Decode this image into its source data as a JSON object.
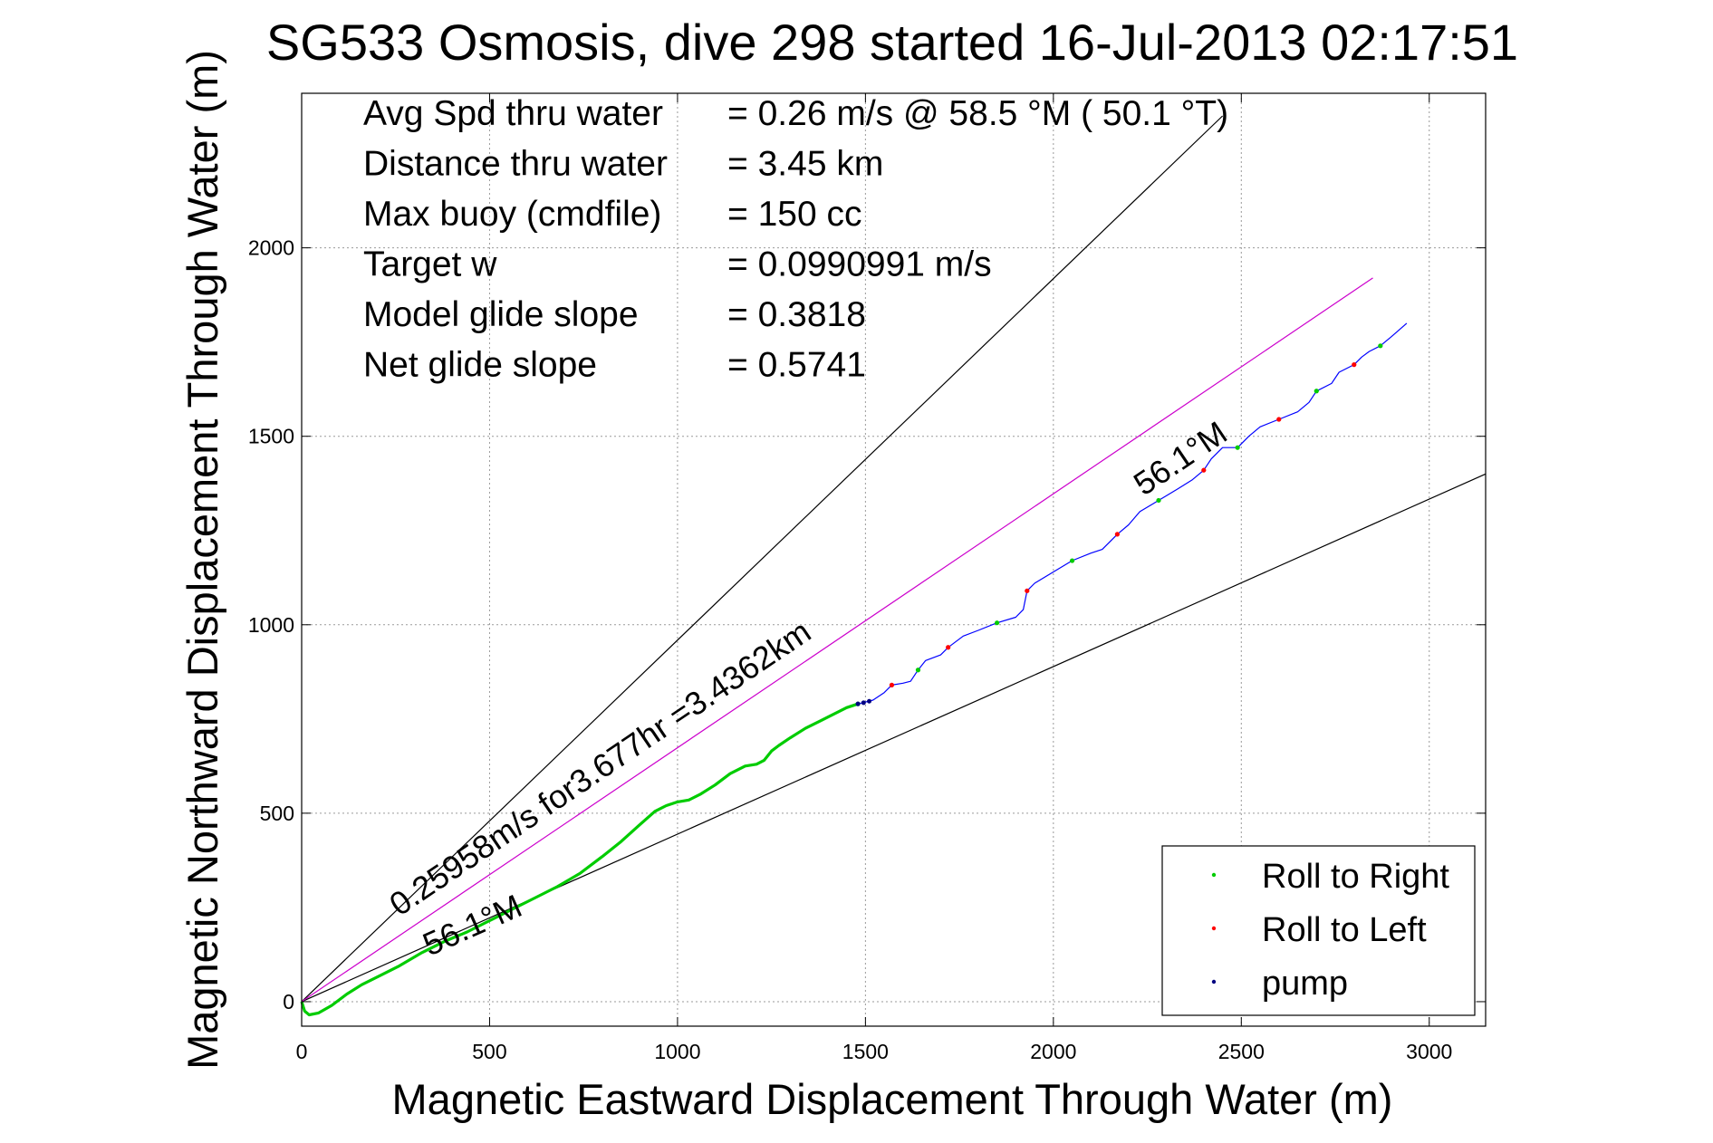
{
  "chart_data": {
    "type": "line",
    "title": "SG533 Osmosis, dive 298 started 16-Jul-2013 02:17:51",
    "xlabel": "Magnetic Eastward Displacement Through Water (m)",
    "ylabel": "Magnetic Northward Displacement Through Water (m)",
    "xlim": [
      0,
      3150
    ],
    "ylim": [
      -65,
      2410
    ],
    "xticks": [
      0,
      500,
      1000,
      1500,
      2000,
      2500,
      3000
    ],
    "yticks": [
      0,
      500,
      1000,
      1500,
      2000
    ],
    "grid": true,
    "legend_position": "bottom-right",
    "legend": [
      {
        "label": "Roll to Right",
        "color": "#00cc00"
      },
      {
        "label": "Roll to Left",
        "color": "#ff0000"
      },
      {
        "label": "pump",
        "color": "#000080"
      }
    ],
    "info_lines": [
      {
        "label": "Avg Spd thru water",
        "value": "=  0.26 m/s @  58.5 °M ( 50.1 °T)"
      },
      {
        "label": "Distance thru water",
        "value": "=  3.45 km"
      },
      {
        "label": "Max buoy (cmdfile)",
        "value": "= 150 cc"
      },
      {
        "label": "Target w",
        "value": "= 0.0990991 m/s"
      },
      {
        "label": "Model glide slope",
        "value": "= 0.3818"
      },
      {
        "label": "Net glide slope",
        "value": "= 0.5741"
      }
    ],
    "annotations": [
      {
        "text": "0.25958m/s for3.677hr =3.4362km",
        "x": 260,
        "y": 225
      },
      {
        "text": "56.1°M",
        "x": 340,
        "y": 120
      },
      {
        "text": "56.1°M",
        "x": 2240,
        "y": 1340
      }
    ],
    "series": [
      {
        "color": "#000000",
        "x": [
          0,
          2450
        ],
        "y": [
          0,
          2350
        ]
      },
      {
        "color": "#000000",
        "x": [
          0,
          3150
        ],
        "y": [
          0,
          1400
        ]
      },
      {
        "color": "#cc00cc",
        "x": [
          0,
          2850
        ],
        "y": [
          0,
          1920
        ]
      },
      {
        "color": "#00cc00",
        "x": [
          0,
          8,
          20,
          45,
          80,
          120,
          160,
          200,
          260,
          320,
          380,
          440,
          500,
          560,
          620,
          680,
          740,
          800,
          850,
          900,
          940,
          970,
          1000,
          1030,
          1060,
          1100,
          1140,
          1180,
          1210,
          1230,
          1250,
          1270,
          1300,
          1340,
          1380,
          1420,
          1450,
          1480
        ],
        "y": [
          0,
          -25,
          -35,
          -30,
          -10,
          20,
          45,
          65,
          95,
          130,
          160,
          185,
          215,
          245,
          275,
          305,
          340,
          385,
          425,
          470,
          505,
          520,
          530,
          535,
          550,
          575,
          605,
          625,
          630,
          640,
          665,
          680,
          700,
          725,
          745,
          765,
          780,
          790
        ]
      },
      {
        "color": "#0000ff",
        "x": [
          1480,
          1520,
          1550,
          1570,
          1600,
          1620,
          1640,
          1660,
          1700,
          1720,
          1760,
          1800,
          1850,
          1900,
          1920,
          1930,
          1950,
          2000,
          2050,
          2100,
          2130,
          2170,
          2200,
          2230,
          2280,
          2330,
          2370,
          2400,
          2420,
          2450,
          2490,
          2520,
          2550,
          2600,
          2650,
          2680,
          2700,
          2740,
          2760,
          2800,
          2820,
          2840,
          2870,
          2900,
          2940
        ],
        "y": [
          790,
          800,
          820,
          840,
          845,
          850,
          880,
          905,
          920,
          940,
          970,
          985,
          1005,
          1020,
          1040,
          1090,
          1110,
          1140,
          1170,
          1190,
          1200,
          1240,
          1265,
          1300,
          1330,
          1360,
          1385,
          1410,
          1440,
          1470,
          1470,
          1500,
          1525,
          1545,
          1565,
          1590,
          1620,
          1640,
          1670,
          1690,
          1710,
          1725,
          1740,
          1765,
          1800
        ]
      }
    ]
  }
}
